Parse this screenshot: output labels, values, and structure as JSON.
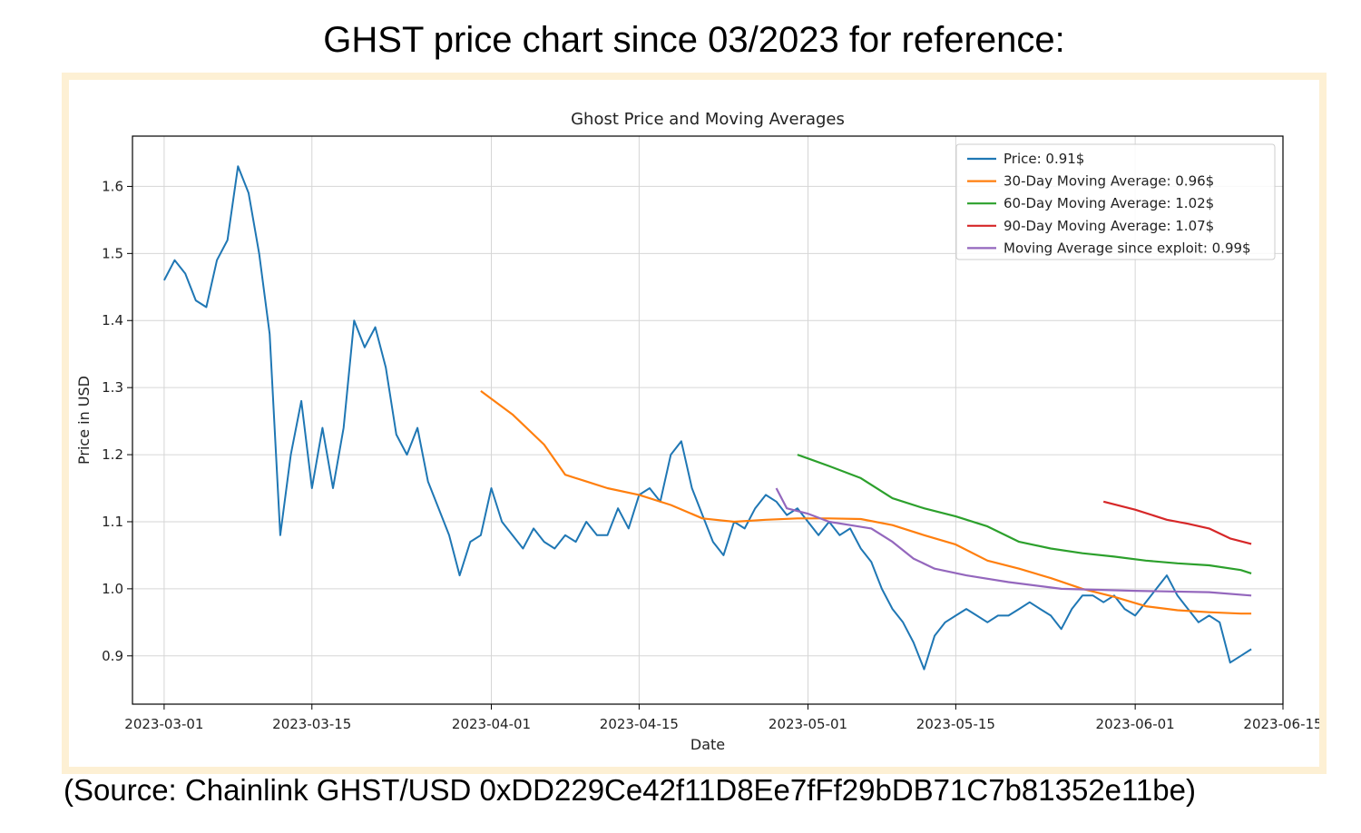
{
  "heading": "GHST price chart since 03/2023 for reference:",
  "source": "(Source: Chainlink GHST/USD 0xDD229Ce42f11D8Ee7fFf29bDB71C7b81352e11be)",
  "chart_data": {
    "type": "line",
    "title": "Ghost Price and Moving Averages",
    "xlabel": "Date",
    "ylabel": "Price in USD",
    "xlim": [
      "2023-02-26",
      "2023-06-15"
    ],
    "ylim": [
      0.828,
      1.675
    ],
    "x_ticks": [
      "2023-03-01",
      "2023-03-15",
      "2023-04-01",
      "2023-04-15",
      "2023-05-01",
      "2023-05-15",
      "2023-06-01",
      "2023-06-15"
    ],
    "y_ticks": [
      0.9,
      1.0,
      1.1,
      1.2,
      1.3,
      1.4,
      1.5,
      1.6
    ],
    "grid": true,
    "legend_position": "top-right",
    "series": [
      {
        "name": "Price: 0.91$",
        "color": "#1f77b4",
        "points": [
          [
            "2023-03-01",
            1.46
          ],
          [
            "2023-03-02",
            1.49
          ],
          [
            "2023-03-03",
            1.47
          ],
          [
            "2023-03-04",
            1.43
          ],
          [
            "2023-03-05",
            1.42
          ],
          [
            "2023-03-06",
            1.49
          ],
          [
            "2023-03-07",
            1.52
          ],
          [
            "2023-03-08",
            1.63
          ],
          [
            "2023-03-09",
            1.59
          ],
          [
            "2023-03-10",
            1.5
          ],
          [
            "2023-03-11",
            1.38
          ],
          [
            "2023-03-12",
            1.08
          ],
          [
            "2023-03-13",
            1.2
          ],
          [
            "2023-03-14",
            1.28
          ],
          [
            "2023-03-15",
            1.15
          ],
          [
            "2023-03-16",
            1.24
          ],
          [
            "2023-03-17",
            1.15
          ],
          [
            "2023-03-18",
            1.24
          ],
          [
            "2023-03-19",
            1.4
          ],
          [
            "2023-03-20",
            1.36
          ],
          [
            "2023-03-21",
            1.39
          ],
          [
            "2023-03-22",
            1.33
          ],
          [
            "2023-03-23",
            1.23
          ],
          [
            "2023-03-24",
            1.2
          ],
          [
            "2023-03-25",
            1.24
          ],
          [
            "2023-03-26",
            1.16
          ],
          [
            "2023-03-27",
            1.12
          ],
          [
            "2023-03-28",
            1.08
          ],
          [
            "2023-03-29",
            1.02
          ],
          [
            "2023-03-30",
            1.07
          ],
          [
            "2023-03-31",
            1.08
          ],
          [
            "2023-04-01",
            1.15
          ],
          [
            "2023-04-02",
            1.1
          ],
          [
            "2023-04-03",
            1.08
          ],
          [
            "2023-04-04",
            1.06
          ],
          [
            "2023-04-05",
            1.09
          ],
          [
            "2023-04-06",
            1.07
          ],
          [
            "2023-04-07",
            1.06
          ],
          [
            "2023-04-08",
            1.08
          ],
          [
            "2023-04-09",
            1.07
          ],
          [
            "2023-04-10",
            1.1
          ],
          [
            "2023-04-11",
            1.08
          ],
          [
            "2023-04-12",
            1.08
          ],
          [
            "2023-04-13",
            1.12
          ],
          [
            "2023-04-14",
            1.09
          ],
          [
            "2023-04-15",
            1.14
          ],
          [
            "2023-04-16",
            1.15
          ],
          [
            "2023-04-17",
            1.13
          ],
          [
            "2023-04-18",
            1.2
          ],
          [
            "2023-04-19",
            1.22
          ],
          [
            "2023-04-20",
            1.15
          ],
          [
            "2023-04-21",
            1.11
          ],
          [
            "2023-04-22",
            1.07
          ],
          [
            "2023-04-23",
            1.05
          ],
          [
            "2023-04-24",
            1.1
          ],
          [
            "2023-04-25",
            1.09
          ],
          [
            "2023-04-26",
            1.12
          ],
          [
            "2023-04-27",
            1.14
          ],
          [
            "2023-04-28",
            1.13
          ],
          [
            "2023-04-29",
            1.11
          ],
          [
            "2023-04-30",
            1.12
          ],
          [
            "2023-05-01",
            1.1
          ],
          [
            "2023-05-02",
            1.08
          ],
          [
            "2023-05-03",
            1.1
          ],
          [
            "2023-05-04",
            1.08
          ],
          [
            "2023-05-05",
            1.09
          ],
          [
            "2023-05-06",
            1.06
          ],
          [
            "2023-05-07",
            1.04
          ],
          [
            "2023-05-08",
            1.0
          ],
          [
            "2023-05-09",
            0.97
          ],
          [
            "2023-05-10",
            0.95
          ],
          [
            "2023-05-11",
            0.92
          ],
          [
            "2023-05-12",
            0.88
          ],
          [
            "2023-05-13",
            0.93
          ],
          [
            "2023-05-14",
            0.95
          ],
          [
            "2023-05-15",
            0.96
          ],
          [
            "2023-05-16",
            0.97
          ],
          [
            "2023-05-17",
            0.96
          ],
          [
            "2023-05-18",
            0.95
          ],
          [
            "2023-05-19",
            0.96
          ],
          [
            "2023-05-20",
            0.96
          ],
          [
            "2023-05-21",
            0.97
          ],
          [
            "2023-05-22",
            0.98
          ],
          [
            "2023-05-23",
            0.97
          ],
          [
            "2023-05-24",
            0.96
          ],
          [
            "2023-05-25",
            0.94
          ],
          [
            "2023-05-26",
            0.97
          ],
          [
            "2023-05-27",
            0.99
          ],
          [
            "2023-05-28",
            0.99
          ],
          [
            "2023-05-29",
            0.98
          ],
          [
            "2023-05-30",
            0.99
          ],
          [
            "2023-05-31",
            0.97
          ],
          [
            "2023-06-01",
            0.96
          ],
          [
            "2023-06-02",
            0.98
          ],
          [
            "2023-06-03",
            1.0
          ],
          [
            "2023-06-04",
            1.02
          ],
          [
            "2023-06-05",
            0.99
          ],
          [
            "2023-06-06",
            0.97
          ],
          [
            "2023-06-07",
            0.95
          ],
          [
            "2023-06-08",
            0.96
          ],
          [
            "2023-06-09",
            0.95
          ],
          [
            "2023-06-10",
            0.89
          ],
          [
            "2023-06-11",
            0.9
          ],
          [
            "2023-06-12",
            0.91
          ]
        ]
      },
      {
        "name": "30-Day Moving Average: 0.96$",
        "color": "#ff7f0e",
        "points": [
          [
            "2023-03-31",
            1.295
          ],
          [
            "2023-04-03",
            1.26
          ],
          [
            "2023-04-06",
            1.215
          ],
          [
            "2023-04-08",
            1.17
          ],
          [
            "2023-04-10",
            1.16
          ],
          [
            "2023-04-12",
            1.15
          ],
          [
            "2023-04-15",
            1.14
          ],
          [
            "2023-04-18",
            1.125
          ],
          [
            "2023-04-21",
            1.105
          ],
          [
            "2023-04-24",
            1.1
          ],
          [
            "2023-04-27",
            1.103
          ],
          [
            "2023-04-30",
            1.105
          ],
          [
            "2023-05-03",
            1.105
          ],
          [
            "2023-05-06",
            1.104
          ],
          [
            "2023-05-09",
            1.095
          ],
          [
            "2023-05-12",
            1.08
          ],
          [
            "2023-05-15",
            1.066
          ],
          [
            "2023-05-18",
            1.042
          ],
          [
            "2023-05-21",
            1.03
          ],
          [
            "2023-05-24",
            1.016
          ],
          [
            "2023-05-27",
            1.0
          ],
          [
            "2023-05-30",
            0.988
          ],
          [
            "2023-06-02",
            0.974
          ],
          [
            "2023-06-05",
            0.968
          ],
          [
            "2023-06-08",
            0.965
          ],
          [
            "2023-06-11",
            0.963
          ],
          [
            "2023-06-12",
            0.963
          ]
        ]
      },
      {
        "name": "60-Day Moving Average: 1.02$",
        "color": "#2ca02c",
        "points": [
          [
            "2023-04-30",
            1.2
          ],
          [
            "2023-05-03",
            1.183
          ],
          [
            "2023-05-06",
            1.165
          ],
          [
            "2023-05-09",
            1.135
          ],
          [
            "2023-05-12",
            1.12
          ],
          [
            "2023-05-15",
            1.108
          ],
          [
            "2023-05-18",
            1.093
          ],
          [
            "2023-05-21",
            1.07
          ],
          [
            "2023-05-24",
            1.06
          ],
          [
            "2023-05-27",
            1.053
          ],
          [
            "2023-05-30",
            1.048
          ],
          [
            "2023-06-02",
            1.042
          ],
          [
            "2023-06-05",
            1.038
          ],
          [
            "2023-06-08",
            1.035
          ],
          [
            "2023-06-11",
            1.028
          ],
          [
            "2023-06-12",
            1.023
          ]
        ]
      },
      {
        "name": "90-Day Moving Average: 1.07$",
        "color": "#d62728",
        "points": [
          [
            "2023-05-29",
            1.13
          ],
          [
            "2023-06-01",
            1.118
          ],
          [
            "2023-06-04",
            1.103
          ],
          [
            "2023-06-06",
            1.097
          ],
          [
            "2023-06-08",
            1.09
          ],
          [
            "2023-06-10",
            1.075
          ],
          [
            "2023-06-12",
            1.067
          ]
        ]
      },
      {
        "name": "Moving Average since exploit: 0.99$",
        "color": "#9467bd",
        "points": [
          [
            "2023-04-28",
            1.15
          ],
          [
            "2023-04-29",
            1.12
          ],
          [
            "2023-05-01",
            1.112
          ],
          [
            "2023-05-03",
            1.1
          ],
          [
            "2023-05-05",
            1.095
          ],
          [
            "2023-05-07",
            1.09
          ],
          [
            "2023-05-09",
            1.07
          ],
          [
            "2023-05-11",
            1.045
          ],
          [
            "2023-05-13",
            1.03
          ],
          [
            "2023-05-16",
            1.02
          ],
          [
            "2023-05-20",
            1.01
          ],
          [
            "2023-05-25",
            1.0
          ],
          [
            "2023-06-01",
            0.997
          ],
          [
            "2023-06-08",
            0.995
          ],
          [
            "2023-06-12",
            0.99
          ]
        ]
      }
    ]
  }
}
